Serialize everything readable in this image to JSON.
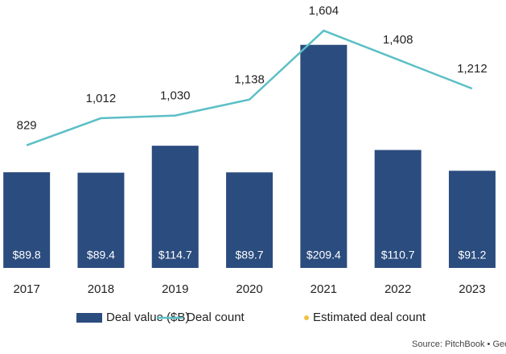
{
  "chart_data": {
    "type": "bar",
    "categories": [
      "2017",
      "2018",
      "2019",
      "2020",
      "2021",
      "2022",
      "2023"
    ],
    "series": [
      {
        "name": "Deal value ($B)",
        "color": "#2b4c7e",
        "values": [
          89.8,
          89.4,
          114.7,
          89.7,
          209.4,
          110.7,
          91.2
        ],
        "value_labels": [
          "$89.8",
          "$89.4",
          "$114.7",
          "$89.7",
          "$209.4",
          "$110.7",
          "$91.2"
        ]
      },
      {
        "name": "Deal count",
        "color": "#5bbfc6",
        "axis": "y2",
        "values": [
          829,
          1012,
          1030,
          1138,
          1604,
          1408,
          1212
        ],
        "value_labels": [
          "829",
          "1,012",
          "1,030",
          "1,138",
          "1,604",
          "1,408",
          "1,212"
        ]
      },
      {
        "name": "Estimated deal count",
        "color": "#f2c144",
        "axis": "y2",
        "values": [
          null,
          null,
          null,
          null,
          null,
          null,
          null
        ]
      }
    ],
    "ylim": [
      0,
      250
    ],
    "y2lim": [
      0,
      1800
    ],
    "source": "Source: PitchBook  •  Geog"
  }
}
